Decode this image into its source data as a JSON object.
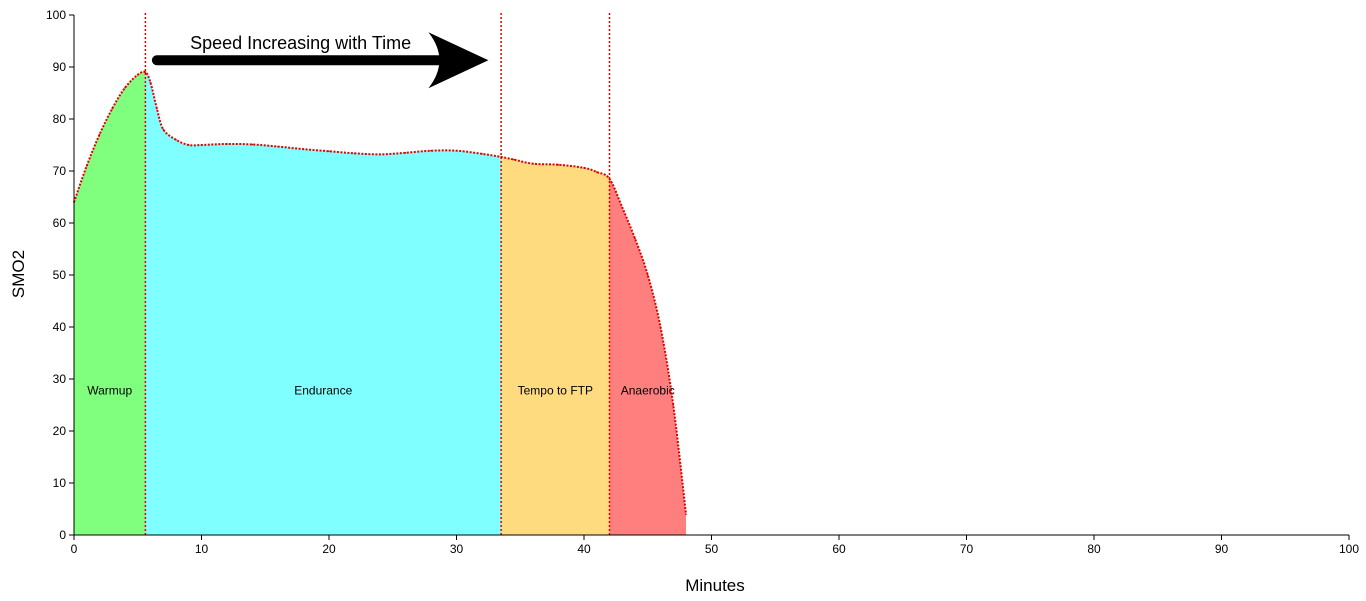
{
  "chart_data": {
    "type": "area",
    "title": "",
    "xlabel": "Minutes",
    "ylabel": "SMO2",
    "xlim": [
      0,
      100
    ],
    "ylim": [
      0,
      100
    ],
    "x_ticks": [
      0,
      10,
      20,
      30,
      40,
      50,
      60,
      70,
      80,
      90,
      100
    ],
    "y_ticks": [
      0,
      10,
      20,
      30,
      40,
      50,
      60,
      70,
      80,
      90,
      100
    ],
    "grid": false,
    "legend": "none",
    "series": [
      {
        "x": [
          0,
          1,
          2,
          3,
          4,
          5,
          5.6,
          6,
          6.5,
          7,
          8,
          9,
          10,
          12,
          14,
          16,
          18,
          20,
          22,
          24,
          26,
          28,
          30,
          32,
          33.5,
          34.5,
          36,
          38,
          40,
          41,
          42,
          43,
          44,
          45,
          46,
          47,
          48
        ],
        "values": [
          64,
          71,
          77,
          82,
          86,
          88.5,
          89,
          87,
          82,
          78,
          76,
          75,
          75,
          75.2,
          75.1,
          74.7,
          74.2,
          73.8,
          73.4,
          73.2,
          73.5,
          73.9,
          73.9,
          73.3,
          72.7,
          72.2,
          71.4,
          71.2,
          70.6,
          69.8,
          68.5,
          63,
          57,
          50,
          40,
          25,
          4
        ],
        "color": "#e00000",
        "style": "dotted"
      }
    ],
    "zones": [
      {
        "label": "Warmup",
        "x_start": 0,
        "x_end": 5.6,
        "color": "#80ff7f"
      },
      {
        "label": "Endurance",
        "x_start": 5.6,
        "x_end": 33.5,
        "color": "#7fffff"
      },
      {
        "label": "Tempo to FTP",
        "x_start": 33.5,
        "x_end": 42,
        "color": "#ffdb80"
      },
      {
        "label": "Anaerobic",
        "x_start": 42,
        "x_end": 48,
        "color": "#ff7f7f"
      }
    ],
    "vlines": [
      5.6,
      33.5,
      42
    ],
    "vline_color": "#e00000",
    "annotations": [
      {
        "text": "Speed Increasing with Time",
        "type": "arrow",
        "x_start": 6.5,
        "x_end": 32.5,
        "y": 91.3
      }
    ]
  }
}
